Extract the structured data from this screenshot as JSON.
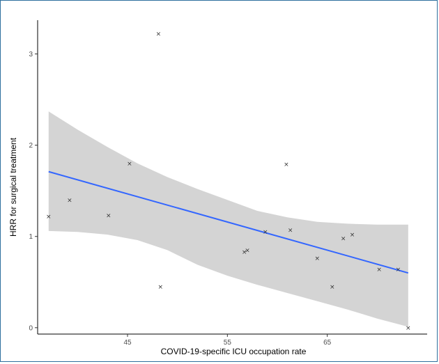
{
  "chart_data": {
    "type": "scatter",
    "title": "",
    "xlabel": "COVID-19-specific ICU occupation rate",
    "ylabel": "HRR for surgical treatment",
    "xlim": [
      36.0,
      75.0
    ],
    "ylim": [
      -0.07,
      3.37
    ],
    "xticks": [
      45,
      55,
      65
    ],
    "yticks": [
      0,
      1,
      2,
      3
    ],
    "grid": false,
    "legend": "none",
    "points": [
      {
        "x": 37.1,
        "y": 1.22
      },
      {
        "x": 39.2,
        "y": 1.4
      },
      {
        "x": 43.1,
        "y": 1.23
      },
      {
        "x": 45.2,
        "y": 1.8
      },
      {
        "x": 48.1,
        "y": 3.22
      },
      {
        "x": 48.3,
        "y": 0.45
      },
      {
        "x": 56.7,
        "y": 0.83
      },
      {
        "x": 57.0,
        "y": 0.85
      },
      {
        "x": 58.8,
        "y": 1.05
      },
      {
        "x": 60.9,
        "y": 1.79
      },
      {
        "x": 61.3,
        "y": 1.07
      },
      {
        "x": 64.0,
        "y": 0.76
      },
      {
        "x": 65.5,
        "y": 0.45
      },
      {
        "x": 66.6,
        "y": 0.98
      },
      {
        "x": 67.5,
        "y": 1.02
      },
      {
        "x": 70.2,
        "y": 0.64
      },
      {
        "x": 72.1,
        "y": 0.64
      },
      {
        "x": 73.1,
        "y": 0.0
      }
    ],
    "fit_line": {
      "x": [
        37.1,
        73.1
      ],
      "y": [
        1.71,
        0.6
      ]
    },
    "confidence_band": {
      "x": [
        37.1,
        40.0,
        43.0,
        46.0,
        49.0,
        52.0,
        55.0,
        58.0,
        61.0,
        64.0,
        67.0,
        70.0,
        73.1
      ],
      "lower": [
        1.06,
        1.05,
        1.02,
        0.96,
        0.85,
        0.69,
        0.57,
        0.47,
        0.38,
        0.29,
        0.2,
        0.1,
        0.01
      ],
      "upper": [
        2.37,
        2.17,
        1.98,
        1.8,
        1.65,
        1.52,
        1.4,
        1.28,
        1.21,
        1.16,
        1.14,
        1.13,
        1.13
      ]
    },
    "colors": {
      "line": "#3366ff",
      "band": "#d4d4d4",
      "points": "#333333",
      "axis": "#000000"
    }
  }
}
